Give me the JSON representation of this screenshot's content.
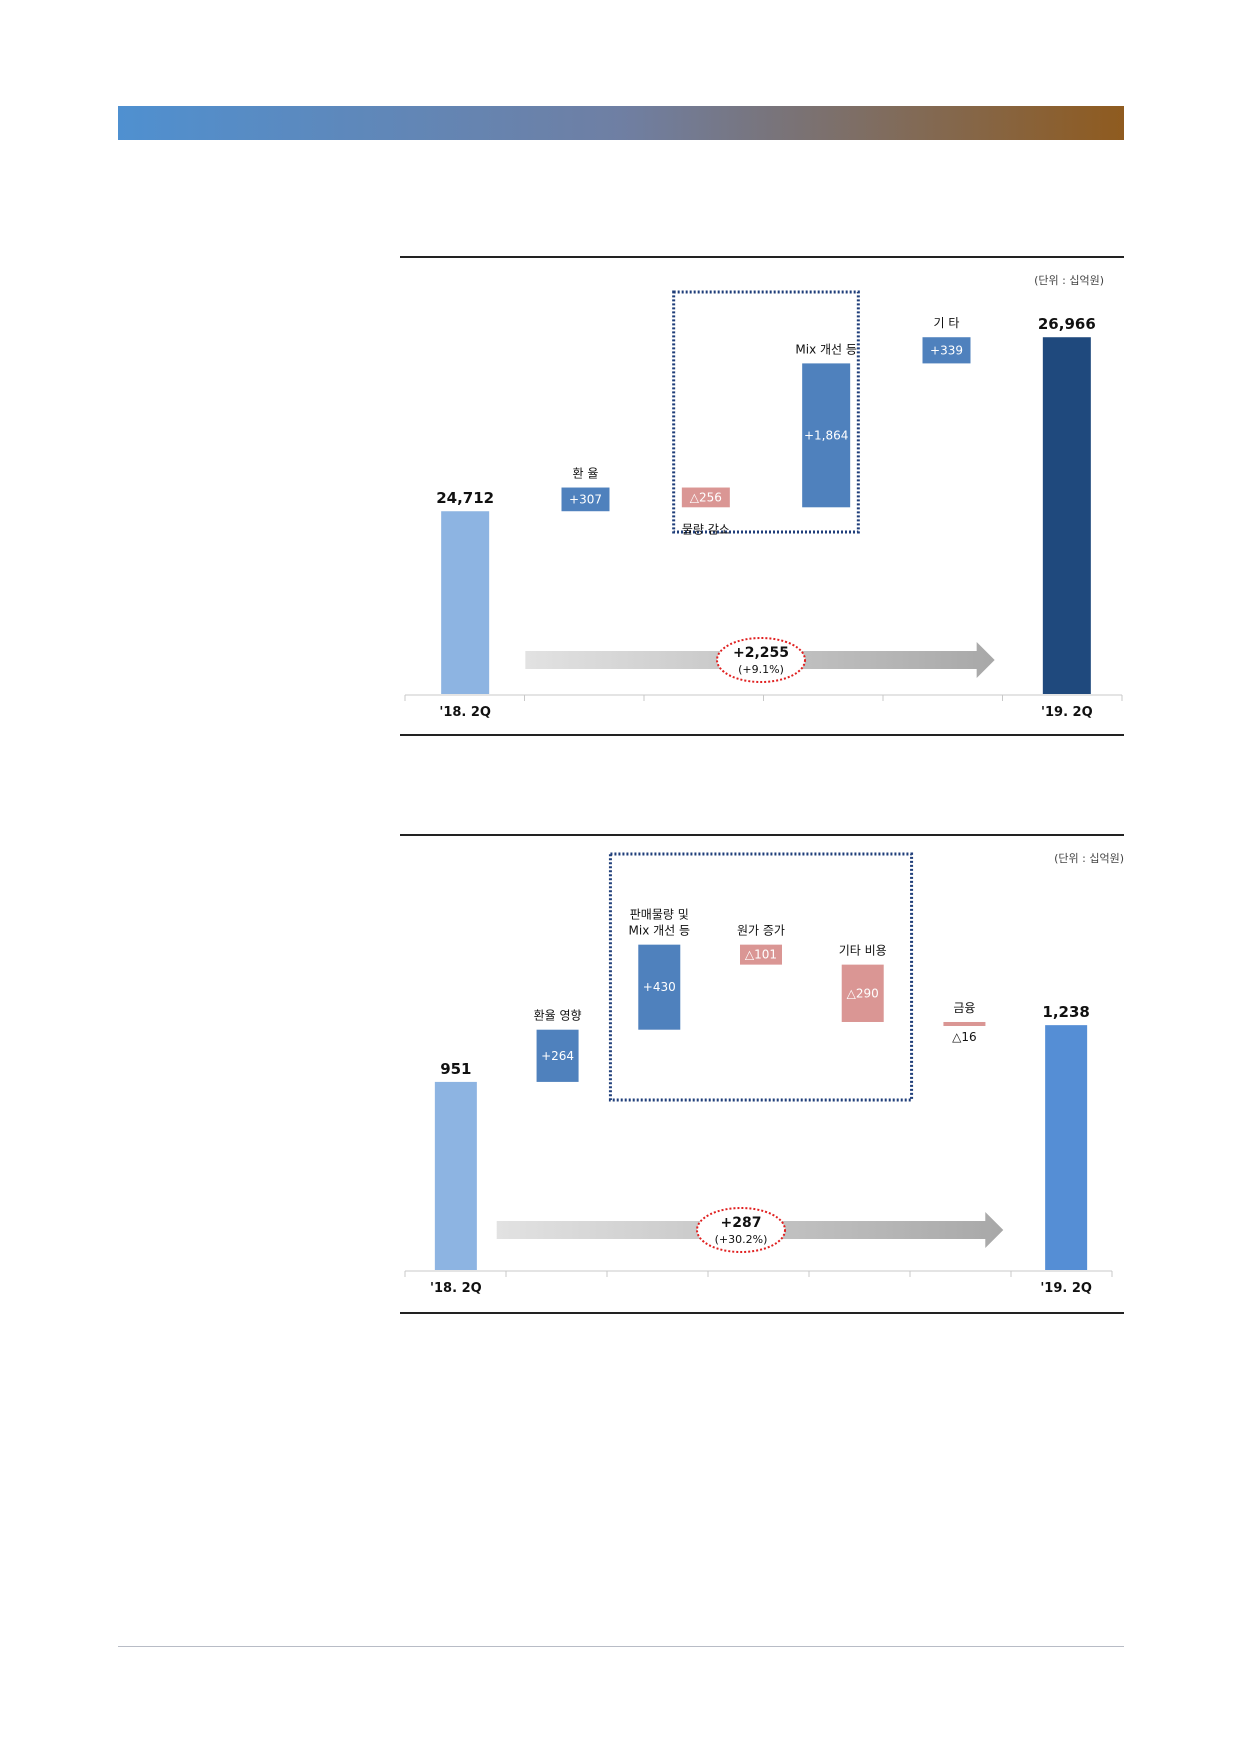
{
  "header": {
    "band_colors": [
      "#4f90d0",
      "#6f7fa3",
      "#8f5b1f"
    ]
  },
  "chart_data": [
    {
      "type": "bar",
      "subtype": "waterfall",
      "unit": "(단위 : 십억원)",
      "categories": [
        "'18. 2Q",
        "",
        "",
        "",
        "",
        "'19. 2Q"
      ],
      "ylim": [
        0,
        27500
      ],
      "grid": false,
      "bars": [
        {
          "kind": "total",
          "label": "",
          "value_text": "24,712",
          "start": 0,
          "end": 24712,
          "color": "#8db4e2"
        },
        {
          "kind": "up",
          "label": "환  율",
          "value_text": "+307",
          "start": 24712,
          "end": 25019,
          "color": "#4f81bd"
        },
        {
          "kind": "down",
          "label": "물량 감소",
          "value_text": "△256",
          "start": 25019,
          "end": 24763,
          "color": "#da9694"
        },
        {
          "kind": "up",
          "label": "Mix 개선 등",
          "value_text": "+1,864",
          "start": 24763,
          "end": 26627,
          "color": "#4f81bd"
        },
        {
          "kind": "up",
          "label": "기  타",
          "value_text": "+339",
          "start": 26627,
          "end": 26966,
          "color": "#4f81bd"
        },
        {
          "kind": "total",
          "label": "",
          "value_text": "26,966",
          "start": 0,
          "end": 26966,
          "color": "#1f497d"
        }
      ],
      "highlight_box": {
        "from": 2,
        "to": 3
      },
      "change": {
        "text": "+2,255",
        "pct": "(+9.1%)"
      }
    },
    {
      "type": "bar",
      "subtype": "waterfall",
      "unit": "(단위 : 십억원)",
      "categories": [
        "'18. 2Q",
        "",
        "",
        "",
        "",
        "",
        "'19. 2Q"
      ],
      "ylim": [
        0,
        1500
      ],
      "grid": false,
      "bars": [
        {
          "kind": "total",
          "label": "",
          "value_text": "951",
          "start": 0,
          "end": 951,
          "color": "#8db4e2"
        },
        {
          "kind": "up",
          "label": "환율 영향",
          "value_text": "+264",
          "start": 951,
          "end": 1215,
          "color": "#4f81bd"
        },
        {
          "kind": "up",
          "label": "판매물량 및\nMix 개선 등",
          "value_text": "+430",
          "start": 1215,
          "end": 1645,
          "color": "#4f81bd"
        },
        {
          "kind": "down",
          "label": "원가 증가",
          "value_text": "△101",
          "start": 1645,
          "end": 1544,
          "color": "#da9694"
        },
        {
          "kind": "down",
          "label": "기타 비용",
          "value_text": "△290",
          "start": 1544,
          "end": 1254,
          "color": "#da9694"
        },
        {
          "kind": "down",
          "label": "금융",
          "value_text": "△16",
          "start": 1254,
          "end": 1238,
          "color": "#da9694"
        },
        {
          "kind": "total",
          "label": "",
          "value_text": "1,238",
          "start": 0,
          "end": 1238,
          "color": "#558ed5"
        }
      ],
      "highlight_box": {
        "from": 2,
        "to": 4
      },
      "change": {
        "text": "+287",
        "pct": "(+30.2%)"
      }
    }
  ]
}
